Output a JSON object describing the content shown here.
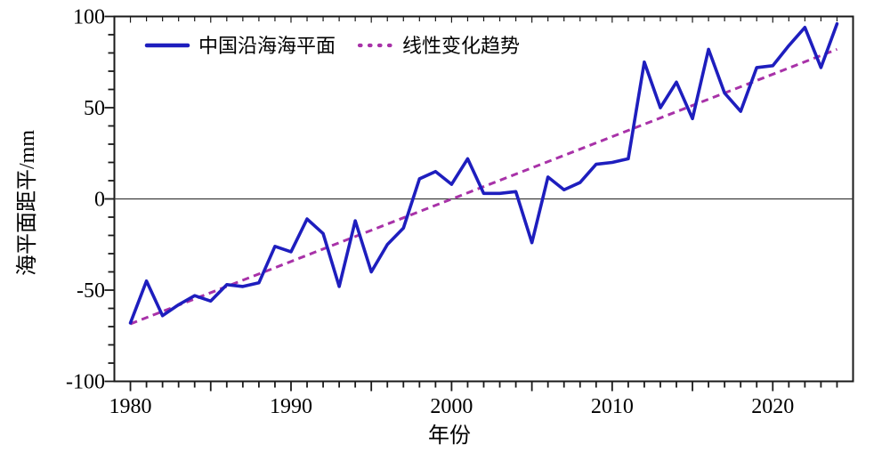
{
  "chart_data": {
    "type": "line",
    "title": "",
    "xlabel": "年份",
    "ylabel": "海平面距平/mm",
    "xlim": [
      1979,
      2025
    ],
    "ylim": [
      -100,
      100
    ],
    "grid": false,
    "zero_line": true,
    "legend_position": "top-left-inside",
    "x_ticks_minor_step_years": 1,
    "x_ticks_major_step_years": 5,
    "y_ticks_minor_step": 10,
    "y_ticks_major_step": 50,
    "x_ticks_labeled": [
      {
        "label": "1980",
        "year": 1980
      },
      {
        "label": "1990",
        "year": 1990
      },
      {
        "label": "2000",
        "year": 2000
      },
      {
        "label": "2010",
        "year": 2010
      },
      {
        "label": "2020",
        "year": 2020
      }
    ],
    "y_ticks_labeled": [
      {
        "label": "100",
        "value": 100
      },
      {
        "label": "50",
        "value": 50
      },
      {
        "label": "0",
        "value": 0
      },
      {
        "label": "-50",
        "value": -50
      },
      {
        "label": "-100",
        "value": -100
      }
    ],
    "series": [
      {
        "name": "中国沿海海平面",
        "type": "line",
        "style": "solid",
        "color": "#1e1ebe",
        "x": [
          1980,
          1981,
          1982,
          1983,
          1984,
          1985,
          1986,
          1987,
          1988,
          1989,
          1990,
          1991,
          1992,
          1993,
          1994,
          1995,
          1996,
          1997,
          1998,
          1999,
          2000,
          2001,
          2002,
          2003,
          2004,
          2005,
          2006,
          2007,
          2008,
          2009,
          2010,
          2011,
          2012,
          2013,
          2014,
          2015,
          2016,
          2017,
          2018,
          2019,
          2020,
          2021,
          2022,
          2023,
          2024
        ],
        "values": [
          -68,
          -45,
          -64,
          -58,
          -53,
          -56,
          -47,
          -48,
          -46,
          -26,
          -29,
          -11,
          -19,
          -48,
          -12,
          -40,
          -25,
          -16,
          11,
          15,
          8,
          22,
          3,
          3,
          4,
          -24,
          12,
          5,
          9,
          19,
          20,
          22,
          75,
          50,
          64,
          44,
          82,
          58,
          48,
          72,
          73,
          84,
          94,
          72,
          96
        ]
      },
      {
        "name": "线性变化趋势",
        "type": "trend",
        "style": "dashed",
        "color": "#a832a8",
        "x": [
          1980,
          2024
        ],
        "values": [
          -68.5,
          82
        ]
      }
    ]
  }
}
